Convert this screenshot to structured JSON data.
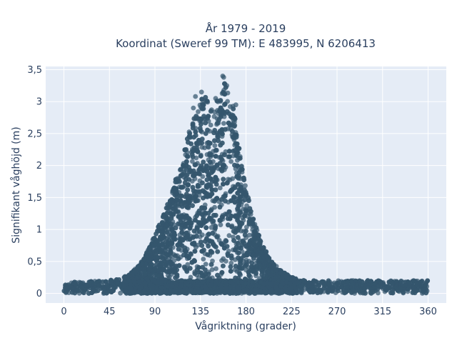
{
  "chart_data": {
    "type": "scatter",
    "title": [
      "År 1979 - 2019",
      "Koordinat (Sweref 99 TM): E 483995, N 6206413"
    ],
    "xlabel": "Vågriktning (grader)",
    "ylabel": "Signifikant våghöjd (m)",
    "xlim": [
      -18,
      378
    ],
    "ylim": [
      -0.15,
      3.55
    ],
    "xticks": [
      0,
      45,
      90,
      135,
      180,
      225,
      270,
      315,
      360
    ],
    "xtick_labels": [
      "0",
      "45",
      "90",
      "135",
      "180",
      "225",
      "270",
      "315",
      "360"
    ],
    "yticks": [
      0,
      0.5,
      1,
      1.5,
      2,
      2.5,
      3,
      3.5
    ],
    "ytick_labels": [
      "0",
      "0,5",
      "1",
      "1,5",
      "2",
      "2,5",
      "3",
      "3,5"
    ],
    "grid": true,
    "colors": {
      "marker": "#34566e",
      "plot_bg": "#e5ecf6",
      "grid": "#ffffff"
    },
    "envelope": {
      "direction": [
        0,
        20,
        40,
        55,
        65,
        75,
        85,
        95,
        105,
        115,
        125,
        135,
        140,
        145,
        155,
        160,
        165,
        175,
        185,
        195,
        205,
        215,
        225,
        240,
        270,
        300,
        330,
        360
      ],
      "max_height": [
        0.18,
        0.18,
        0.2,
        0.22,
        0.3,
        0.45,
        0.75,
        1.1,
        1.5,
        2.0,
        2.6,
        3.05,
        3.1,
        2.9,
        3.1,
        3.4,
        3.2,
        2.1,
        1.3,
        0.8,
        0.5,
        0.35,
        0.25,
        0.2,
        0.2,
        0.2,
        0.2,
        0.2
      ]
    },
    "notable_points": [
      {
        "x": 157,
        "y": 3.4
      },
      {
        "x": 158,
        "y": 3.38
      },
      {
        "x": 130,
        "y": 3.08
      },
      {
        "x": 136,
        "y": 3.15
      },
      {
        "x": 128,
        "y": 2.9
      },
      {
        "x": 170,
        "y": 2.95
      },
      {
        "x": 150,
        "y": 3.05
      },
      {
        "x": 161,
        "y": 3.25
      }
    ],
    "n_points": 7000
  }
}
